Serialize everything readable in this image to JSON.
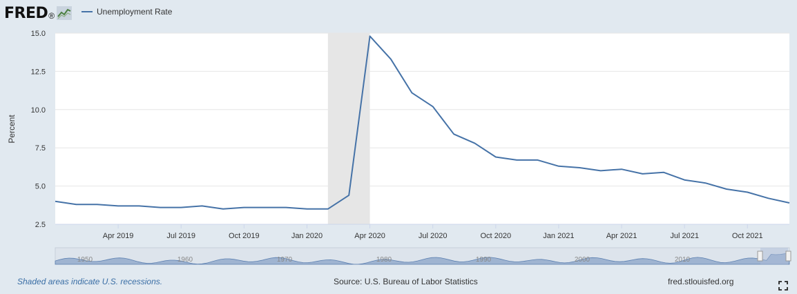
{
  "header": {
    "logo_text": "FRED",
    "logo_mark": "®",
    "legend_label": "Unemployment Rate"
  },
  "colors": {
    "series": "#4572a7",
    "recession": "#e6e6e6",
    "background": "#e1e9f0",
    "plot": "#ffffff",
    "navigator_fill": "#8aa4c8"
  },
  "chart_data": {
    "type": "line",
    "title": "",
    "ylabel": "Percent",
    "xlabel": "",
    "ylim": [
      2.5,
      15.0
    ],
    "y_ticks": [
      "2.5",
      "5.0",
      "7.5",
      "10.0",
      "12.5",
      "15.0"
    ],
    "x_range": [
      "2019-01",
      "2021-12"
    ],
    "x_ticks": [
      {
        "date": "2019-04",
        "label": "Apr 2019"
      },
      {
        "date": "2019-07",
        "label": "Jul 2019"
      },
      {
        "date": "2019-10",
        "label": "Oct 2019"
      },
      {
        "date": "2020-01",
        "label": "Jan 2020"
      },
      {
        "date": "2020-04",
        "label": "Apr 2020"
      },
      {
        "date": "2020-07",
        "label": "Jul 2020"
      },
      {
        "date": "2020-10",
        "label": "Oct 2020"
      },
      {
        "date": "2021-01",
        "label": "Jan 2021"
      },
      {
        "date": "2021-04",
        "label": "Apr 2021"
      },
      {
        "date": "2021-07",
        "label": "Jul 2021"
      },
      {
        "date": "2021-10",
        "label": "Oct 2021"
      }
    ],
    "grid": true,
    "recession": {
      "start": "2020-02",
      "end": "2020-04"
    },
    "series": [
      {
        "name": "Unemployment Rate",
        "x": [
          "2019-01",
          "2019-02",
          "2019-03",
          "2019-04",
          "2019-05",
          "2019-06",
          "2019-07",
          "2019-08",
          "2019-09",
          "2019-10",
          "2019-11",
          "2019-12",
          "2020-01",
          "2020-02",
          "2020-03",
          "2020-04",
          "2020-05",
          "2020-06",
          "2020-07",
          "2020-08",
          "2020-09",
          "2020-10",
          "2020-11",
          "2020-12",
          "2021-01",
          "2021-02",
          "2021-03",
          "2021-04",
          "2021-05",
          "2021-06",
          "2021-07",
          "2021-08",
          "2021-09",
          "2021-10",
          "2021-11",
          "2021-12"
        ],
        "values": [
          4.0,
          3.8,
          3.8,
          3.7,
          3.7,
          3.6,
          3.6,
          3.7,
          3.5,
          3.6,
          3.6,
          3.6,
          3.5,
          3.5,
          4.4,
          14.8,
          13.3,
          11.1,
          10.2,
          8.4,
          7.8,
          6.9,
          6.7,
          6.7,
          6.3,
          6.2,
          6.0,
          6.1,
          5.8,
          5.9,
          5.4,
          5.2,
          4.8,
          4.6,
          4.2,
          3.9
        ]
      }
    ],
    "navigator": {
      "labels": [
        "1950",
        "1960",
        "1970",
        "1980",
        "1990",
        "2000",
        "2010"
      ]
    }
  },
  "footer": {
    "note": "Shaded areas indicate U.S. recessions.",
    "source": "Source: U.S. Bureau of Labor Statistics",
    "site": "fred.stlouisfed.org"
  }
}
